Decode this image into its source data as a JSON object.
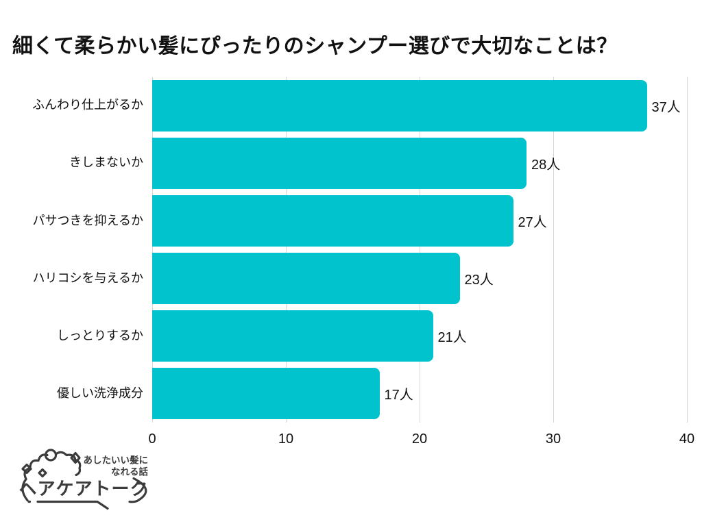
{
  "title": "細くて柔らかい髪にぴったりのシャンプー選びで大切なことは？",
  "chart_data": {
    "type": "bar",
    "orientation": "horizontal",
    "title": "細くて柔らかい髪にぴったりのシャンプー選びで大切なことは？",
    "categories": [
      "ふんわり仕上がるか",
      "きしまないか",
      "パサつきを抑えるか",
      "ハリコシを与えるか",
      "しっとりするか",
      "優しい洗浄成分"
    ],
    "values": [
      37,
      28,
      27,
      23,
      21,
      17
    ],
    "value_labels": [
      "37人",
      "28人",
      "27人",
      "23人",
      "21人",
      "17人"
    ],
    "unit": "人",
    "xticks": [
      "0",
      "10",
      "20",
      "30",
      "40"
    ],
    "xlim": [
      0,
      40
    ],
    "grid": true,
    "legend": false,
    "bar_color": "#00c3ce",
    "gridline_color": "#d6d6d6",
    "text_color": "#111111"
  },
  "logo": {
    "brand": "ヘアケアトーク",
    "tagline_line1": "あしたいい髪に",
    "tagline_line2": "なれる話",
    "color": "#3c3c3c"
  }
}
